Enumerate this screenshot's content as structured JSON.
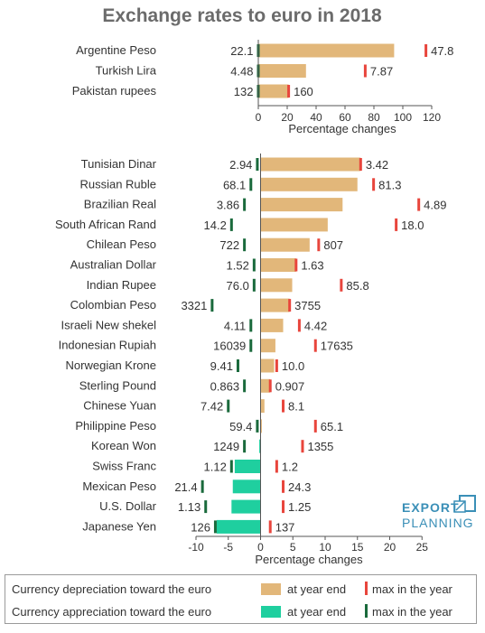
{
  "title": "Exchange rates to euro in 2018",
  "colors": {
    "depreciation_bar": "#e2b77a",
    "appreciation_bar": "#1fcf9f",
    "depreciation_tick": "#e8453c",
    "appreciation_tick": "#1a6a3c",
    "axis": "#555555"
  },
  "chart_data": [
    {
      "type": "bar",
      "orientation": "horizontal",
      "xlabel": "Percentage changes",
      "xlim": [
        0,
        120
      ],
      "xticks": [
        0,
        20,
        40,
        60,
        80,
        100,
        120
      ],
      "categories": [
        "Argentine Peso",
        "Turkish Lira",
        "Pakistan rupees"
      ],
      "values_pct_change": [
        94,
        33,
        21
      ],
      "start_rate": [
        "22.1",
        "4.48",
        "132"
      ],
      "max_rate": [
        "47.8",
        "7.87",
        "160"
      ],
      "max_pct_change": [
        116,
        74,
        21
      ],
      "type_of_change": [
        "depreciation",
        "depreciation",
        "depreciation"
      ]
    },
    {
      "type": "bar",
      "orientation": "horizontal",
      "xlabel": "Percentage changes",
      "xlim": [
        -10,
        25
      ],
      "xticks": [
        -10,
        -5,
        0,
        5,
        10,
        15,
        20,
        25
      ],
      "categories": [
        "Tunisian Dinar",
        "Russian Ruble",
        "Brazilian Real",
        "South African Rand",
        "Chilean Peso",
        "Australian Dollar",
        "Indian Rupee",
        "Colombian Peso",
        "Israeli New shekel",
        "Indonesian Rupiah",
        "Norwegian Krone",
        "Sterling Pound",
        "Chinese Yuan",
        "Philippine Peso",
        "Korean Won",
        "Swiss Franc",
        "Mexican Peso",
        "U.S. Dollar",
        "Japanese Yen"
      ],
      "values_pct_change": [
        15.5,
        15,
        12.7,
        10.4,
        7.6,
        5.5,
        4.9,
        4.5,
        3.5,
        2.3,
        2.1,
        1.5,
        0.6,
        0.2,
        -0.2,
        -4,
        -4.3,
        -4.5,
        -6.8
      ],
      "start_rate": [
        "2.94",
        "68.1",
        "3.86",
        "14.2",
        "722",
        "1.52",
        "76.0",
        "3321",
        "4.11",
        "16039",
        "9.41",
        "0.863",
        "7.42",
        "59.4",
        "1249",
        "1.12",
        "21.4",
        "1.13",
        "126"
      ],
      "max_rate": [
        "3.42",
        "81.3",
        "4.89",
        "18.0",
        "807",
        "1.63",
        "85.8",
        "3755",
        "4.42",
        "17635",
        "10.0",
        "0.907",
        "8.1",
        "65.1",
        "1355",
        "1.2",
        "24.3",
        "1.25",
        "137"
      ],
      "start_tick_pct": [
        -0.5,
        -1.5,
        -2.5,
        -4.5,
        -2.5,
        -1,
        -1,
        -7.5,
        -1.5,
        -1.5,
        -3.5,
        -2.5,
        -5,
        -0.5,
        -2.5,
        -4.5,
        -9,
        -8.5,
        -7
      ],
      "max_tick_pct": [
        15.5,
        17.5,
        24.5,
        21,
        9,
        5.5,
        12.5,
        4.5,
        6,
        8.5,
        2.5,
        1.5,
        3.5,
        8.5,
        6.5,
        2.5,
        3.5,
        3.5,
        1.5
      ],
      "type_of_change": [
        "depreciation",
        "depreciation",
        "depreciation",
        "depreciation",
        "depreciation",
        "depreciation",
        "depreciation",
        "depreciation",
        "depreciation",
        "depreciation",
        "depreciation",
        "depreciation",
        "depreciation",
        "depreciation",
        "appreciation",
        "appreciation",
        "appreciation",
        "appreciation",
        "appreciation"
      ]
    }
  ],
  "logo": {
    "line1": "EXPORT",
    "line2": "PLANNING"
  },
  "legend": {
    "row1_label": "Currency depreciation toward the euro",
    "row2_label": "Currency appreciation toward the euro",
    "year_end": "at year end",
    "max": "max in the year"
  }
}
